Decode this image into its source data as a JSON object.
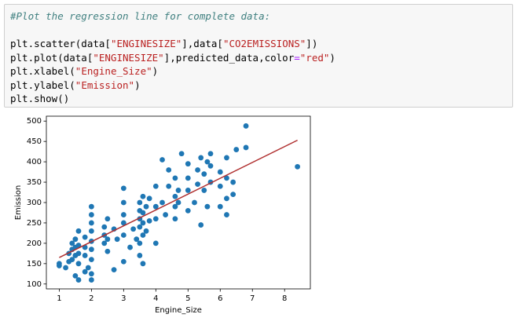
{
  "code": {
    "lines": [
      [
        "#Plot the regression line for complete data:"
      ],
      [
        "plt.scatter(data[",
        "\"ENGINESIZE\"",
        "],data[",
        "\"CO2EMISSIONS\"",
        "])"
      ],
      [
        "plt.plot(data[",
        "\"ENGINESIZE\"",
        "],predicted_data,color",
        "=",
        "\"red\"",
        ")"
      ],
      [
        "plt.xlabel(",
        "\"Engine_Size\"",
        ")"
      ],
      [
        "plt.ylabel(",
        "\"Emission\"",
        ")"
      ],
      [
        "plt.show()"
      ]
    ]
  },
  "chart_data": {
    "type": "scatter",
    "xlabel": "Engine_Size",
    "ylabel": "Emission",
    "xlim": [
      0.6,
      8.8
    ],
    "ylim": [
      88,
      512
    ],
    "xticks": [
      1,
      2,
      3,
      4,
      5,
      6,
      7,
      8
    ],
    "yticks": [
      100,
      150,
      200,
      250,
      300,
      350,
      400,
      450,
      500
    ],
    "series": [
      {
        "type": "scatter",
        "color": "#1f77b4",
        "x": [
          1.0,
          1.0,
          1.2,
          1.3,
          1.3,
          1.4,
          1.4,
          1.4,
          1.5,
          1.5,
          1.5,
          1.5,
          1.6,
          1.6,
          1.6,
          1.6,
          1.6,
          1.8,
          1.8,
          1.8,
          1.8,
          1.9,
          2.0,
          2.0,
          2.0,
          2.0,
          2.0,
          2.0,
          2.0,
          2.0,
          2.0,
          2.4,
          2.4,
          2.4,
          2.5,
          2.5,
          2.5,
          2.7,
          2.7,
          2.8,
          3.0,
          3.0,
          3.0,
          3.0,
          3.0,
          3.0,
          3.2,
          3.3,
          3.4,
          3.5,
          3.5,
          3.5,
          3.5,
          3.5,
          3.5,
          3.6,
          3.6,
          3.6,
          3.6,
          3.6,
          3.7,
          3.7,
          3.8,
          3.8,
          4.0,
          4.0,
          4.0,
          4.0,
          4.2,
          4.2,
          4.3,
          4.4,
          4.4,
          4.6,
          4.6,
          4.6,
          4.6,
          4.7,
          4.7,
          4.8,
          5.0,
          5.0,
          5.0,
          5.0,
          5.2,
          5.3,
          5.3,
          5.4,
          5.4,
          5.5,
          5.5,
          5.6,
          5.6,
          5.7,
          5.7,
          5.7,
          6.0,
          6.0,
          6.0,
          6.2,
          6.2,
          6.2,
          6.2,
          6.4,
          6.4,
          6.5,
          6.8,
          6.8,
          8.4
        ],
        "y": [
          150,
          145,
          140,
          155,
          175,
          160,
          185,
          200,
          120,
          170,
          190,
          210,
          110,
          150,
          175,
          195,
          230,
          130,
          170,
          190,
          215,
          140,
          110,
          125,
          160,
          185,
          205,
          230,
          250,
          270,
          290,
          200,
          220,
          240,
          180,
          210,
          260,
          135,
          235,
          210,
          155,
          220,
          250,
          270,
          300,
          335,
          190,
          235,
          210,
          170,
          200,
          240,
          260,
          280,
          300,
          150,
          220,
          250,
          275,
          315,
          230,
          290,
          255,
          310,
          200,
          260,
          290,
          340,
          300,
          405,
          270,
          340,
          380,
          260,
          290,
          315,
          360,
          300,
          330,
          420,
          280,
          330,
          360,
          395,
          300,
          345,
          380,
          245,
          410,
          330,
          370,
          290,
          400,
          350,
          390,
          420,
          290,
          340,
          375,
          270,
          310,
          360,
          410,
          320,
          350,
          430,
          435,
          488,
          388
        ]
      },
      {
        "type": "line",
        "color": "#b03030",
        "x": [
          1.0,
          8.4
        ],
        "y": [
          165,
          453
        ]
      }
    ]
  }
}
